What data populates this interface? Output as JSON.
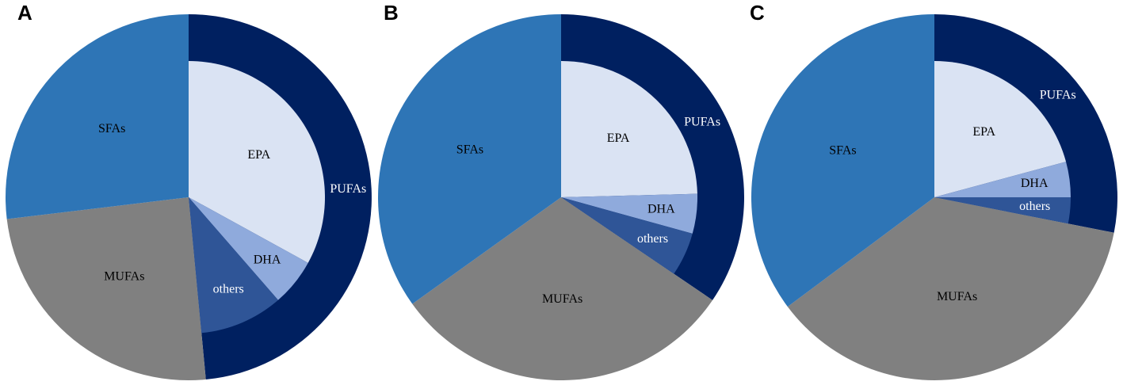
{
  "colors": {
    "SFAs": "#2E75B6",
    "MUFAs": "#808080",
    "PUFAs": "#002060",
    "EPA": "#DAE3F3",
    "DHA": "#8FAADC",
    "others": "#2F5597",
    "label_dark": "#000000",
    "label_light": "#ffffff"
  },
  "chart_data": [
    {
      "panel": "A",
      "type": "pie",
      "outer": [
        {
          "name": "PUFAs",
          "value": 48.5
        },
        {
          "name": "MUFAs",
          "value": 24.6
        },
        {
          "name": "SFAs",
          "value": 26.9
        }
      ],
      "inner": [
        {
          "name": "EPA",
          "value": 33.0
        },
        {
          "name": "DHA",
          "value": 5.6
        },
        {
          "name": "others",
          "value": 9.9
        }
      ]
    },
    {
      "panel": "B",
      "type": "pie",
      "outer": [
        {
          "name": "PUFAs",
          "value": 34.5
        },
        {
          "name": "MUFAs",
          "value": 30.6
        },
        {
          "name": "SFAs",
          "value": 34.9
        }
      ],
      "inner": [
        {
          "name": "EPA",
          "value": 24.6
        },
        {
          "name": "DHA",
          "value": 4.7
        },
        {
          "name": "others",
          "value": 5.2
        }
      ]
    },
    {
      "panel": "C",
      "type": "pie",
      "outer": [
        {
          "name": "PUFAs",
          "value": 28.1
        },
        {
          "name": "MUFAs",
          "value": 36.7
        },
        {
          "name": "SFAs",
          "value": 35.2
        }
      ],
      "inner": [
        {
          "name": "EPA",
          "value": 20.8
        },
        {
          "name": "DHA",
          "value": 4.2
        },
        {
          "name": "others",
          "value": 3.1
        }
      ]
    }
  ]
}
